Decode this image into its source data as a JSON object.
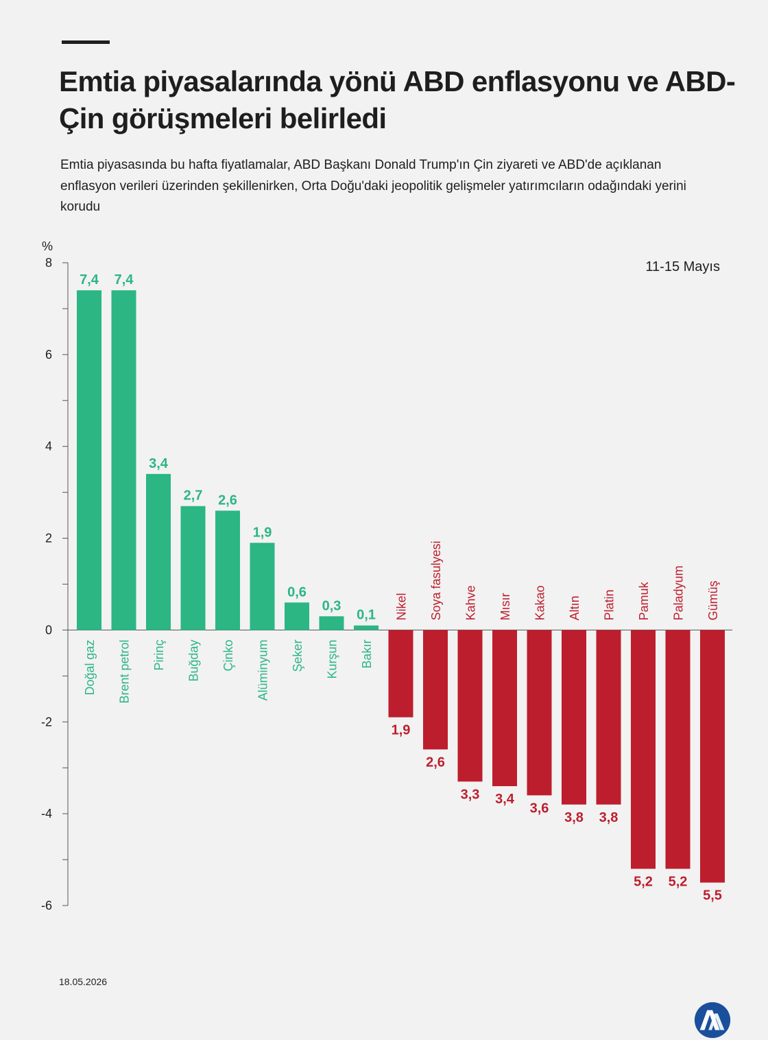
{
  "header": {
    "title": "Emtia piyasalarında yönü ABD enflasyonu ve ABD-Çin görüşmeleri belirledi",
    "subtitle": "Emtia piyasasında bu hafta fiyatlamalar, ABD Başkanı Donald Trump'ın Çin ziyareti ve ABD'de açıklanan enflasyon verileri üzerinden şekillenirken, Orta Doğu'daki jeopolitik gelişmeler yatırımcıların odağındaki yerini korudu"
  },
  "chart_data": {
    "type": "bar",
    "period_label": "11-15 Mayıs",
    "ylabel": "%",
    "ylim": [
      -6,
      8
    ],
    "yticks": [
      8,
      6,
      4,
      2,
      0,
      -2,
      -4,
      -6
    ],
    "grid": false,
    "categories": [
      "Doğal gaz",
      "Brent petrol",
      "Pirinç",
      "Buğday",
      "Çinko",
      "Alüminyum",
      "Şeker",
      "Kurşun",
      "Bakır",
      "Nikel",
      "Soya fasulyesi",
      "Kahve",
      "Mısır",
      "Kakao",
      "Altın",
      "Platin",
      "Pamuk",
      "Paladyum",
      "Gümüş"
    ],
    "values": [
      7.4,
      7.4,
      3.4,
      2.7,
      2.6,
      1.9,
      0.6,
      0.3,
      0.1,
      -1.9,
      -2.6,
      -3.3,
      -3.4,
      -3.6,
      -3.8,
      -3.8,
      -5.2,
      -5.2,
      -5.5
    ],
    "data_labels": [
      "7,4",
      "7,4",
      "3,4",
      "2,7",
      "2,6",
      "1,9",
      "0,6",
      "0,3",
      "0,1",
      "1,9",
      "2,6",
      "3,3",
      "3,4",
      "3,6",
      "3,8",
      "3,8",
      "5,2",
      "5,2",
      "5,5"
    ],
    "colors": {
      "positive": "#2bb684",
      "negative": "#bd1e2d"
    }
  },
  "footer": {
    "date": "18.05.2026",
    "logo_icon": "aa-logo-icon",
    "logo_text": "AA"
  },
  "colors": {
    "background": "#f2f2f2",
    "text": "#1e1e1e",
    "logo": "#1a4f9c"
  }
}
